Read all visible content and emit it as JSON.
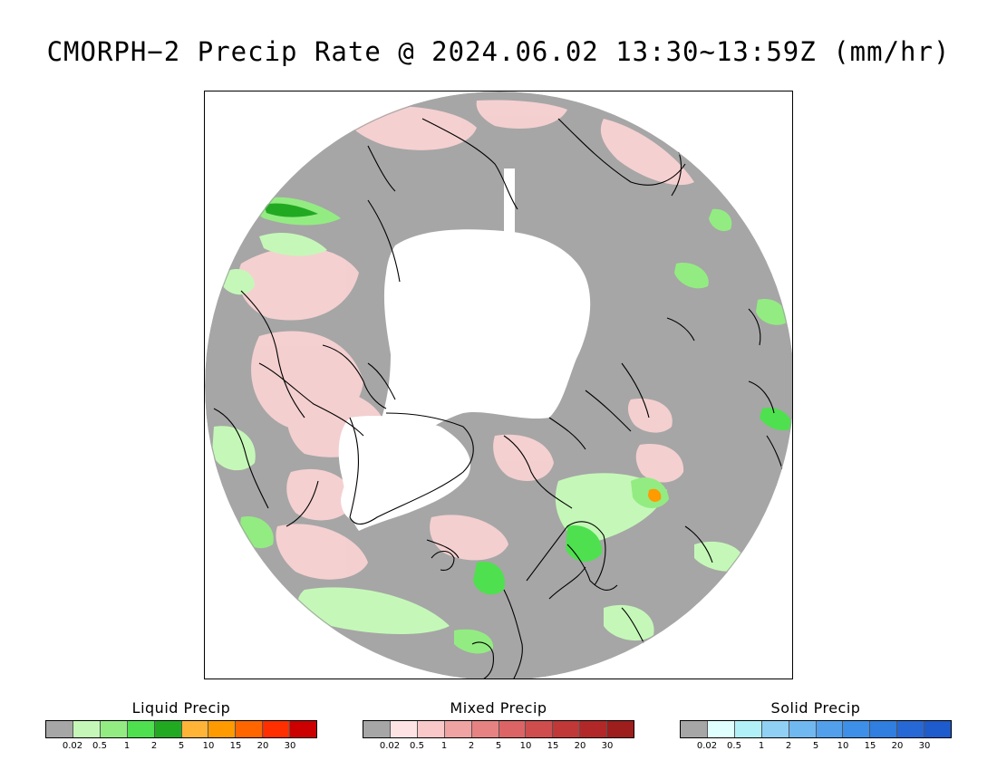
{
  "title": "CMORPH−2 Precip Rate @ 2024.06.02 13:30~13:59Z (mm/hr)",
  "legends": [
    {
      "key": "liquid",
      "title": "Liquid Precip",
      "colors": [
        "#a6a6a6",
        "#c5f8b8",
        "#93ec82",
        "#4fe04f",
        "#22a922",
        "#ffb438",
        "#ff9a00",
        "#ff6600",
        "#ff2f00",
        "#cc0000"
      ],
      "ticks": [
        "0.02",
        "0.5",
        "1",
        "2",
        "5",
        "10",
        "15",
        "20",
        "30"
      ]
    },
    {
      "key": "mixed",
      "title": "Mixed Precip",
      "colors": [
        "#a6a6a6",
        "#fde3e3",
        "#f9c8c8",
        "#f0a3a3",
        "#e68282",
        "#dc6464",
        "#cf4d4d",
        "#c13838",
        "#b22828",
        "#9e1d1d"
      ],
      "ticks": [
        "0.02",
        "0.5",
        "1",
        "2",
        "5",
        "10",
        "15",
        "20",
        "30"
      ]
    },
    {
      "key": "solid",
      "title": "Solid Precip",
      "colors": [
        "#a6a6a6",
        "#e0ffff",
        "#b2f0f8",
        "#90d0f5",
        "#70b8f0",
        "#52a0ec",
        "#3d8fe8",
        "#2f7ee0",
        "#2668d6",
        "#1e5bcc"
      ],
      "ticks": [
        "0.02",
        "0.5",
        "1",
        "2",
        "5",
        "10",
        "15",
        "20",
        "30"
      ]
    }
  ],
  "map": {
    "projection": "north-polar-stereographic",
    "background_color": "#a6a6a6",
    "no_data_color": "#ffffff",
    "coastline_color": "#000000"
  }
}
